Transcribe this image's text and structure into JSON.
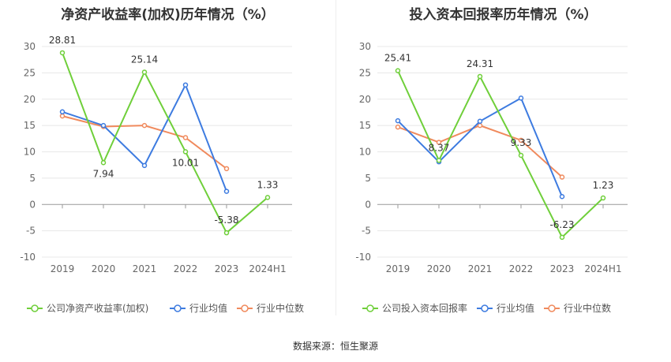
{
  "source": "数据来源：恒生聚源",
  "colors": {
    "company": "#6fcf3a",
    "avg": "#3d7be0",
    "median": "#f08a5d",
    "grid": "#e8e8e8",
    "axis": "#999999"
  },
  "chart_data": [
    {
      "type": "line",
      "title": "净资产收益率(加权)历年情况（%）",
      "categories": [
        "2019",
        "2020",
        "2021",
        "2022",
        "2023",
        "2024H1"
      ],
      "ylim": [
        -10,
        30
      ],
      "yticks": [
        -10,
        -5,
        0,
        5,
        10,
        15,
        20,
        25,
        30
      ],
      "grid": true,
      "legend_position": "bottom",
      "series": [
        {
          "name": "公司净资产收益率(加权)",
          "key": "company",
          "values": [
            28.81,
            7.94,
            25.14,
            10.01,
            -5.38,
            1.33
          ],
          "labels": [
            "28.81",
            "7.94",
            "25.14",
            "10.01",
            "-5.38",
            "1.33"
          ]
        },
        {
          "name": "行业均值",
          "key": "avg",
          "values": [
            17.6,
            15.0,
            7.4,
            22.7,
            2.5,
            null
          ]
        },
        {
          "name": "行业中位数",
          "key": "median",
          "values": [
            16.8,
            14.8,
            15.0,
            12.7,
            6.8,
            null
          ]
        }
      ]
    },
    {
      "type": "line",
      "title": "投入资本回报率历年情况（%）",
      "categories": [
        "2019",
        "2020",
        "2021",
        "2022",
        "2023",
        "2024H1"
      ],
      "ylim": [
        -10,
        30
      ],
      "yticks": [
        -10,
        -5,
        0,
        5,
        10,
        15,
        20,
        25,
        30
      ],
      "grid": true,
      "legend_position": "bottom",
      "series": [
        {
          "name": "公司投入资本回报率",
          "key": "company",
          "values": [
            25.41,
            8.37,
            24.31,
            9.33,
            -6.23,
            1.23
          ],
          "labels": [
            "25.41",
            "8.37",
            "24.31",
            "9.33",
            "-6.23",
            "1.23"
          ]
        },
        {
          "name": "行业均值",
          "key": "avg",
          "values": [
            15.9,
            8.1,
            15.8,
            20.2,
            1.5,
            null
          ]
        },
        {
          "name": "行业中位数",
          "key": "median",
          "values": [
            14.7,
            11.8,
            15.0,
            12.2,
            5.2,
            null
          ]
        }
      ]
    }
  ]
}
